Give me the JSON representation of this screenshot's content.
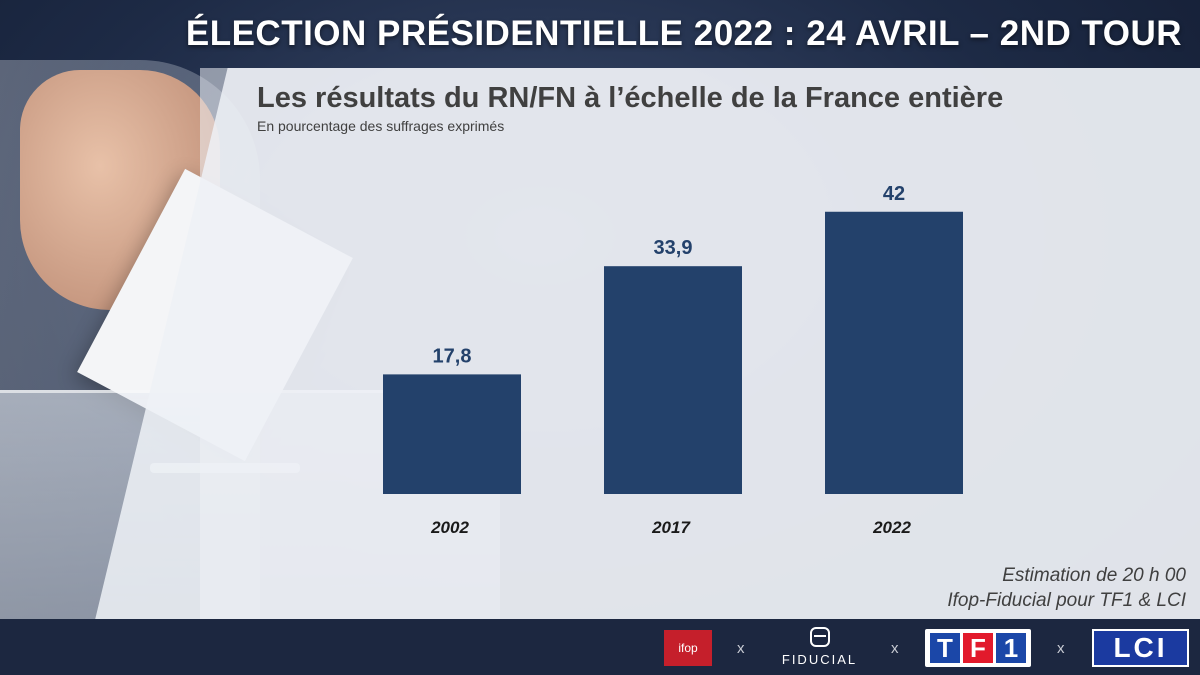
{
  "header": {
    "title": "ÉLECTION PRÉSIDENTIELLE 2022 : 24 AVRIL – 2ND TOUR"
  },
  "chart": {
    "subtitle": "Les résultats du RN/FN à l’échelle de la France entière",
    "unit_note": "En pourcentage des suffrages exprimés"
  },
  "chart_data": {
    "type": "bar",
    "title": "Les résultats du RN/FN à l’échelle de la France entière",
    "subtitle": "En pourcentage des suffrages exprimés",
    "categories": [
      "2002",
      "2017",
      "2022"
    ],
    "values": [
      17.8,
      33.9,
      42
    ],
    "value_labels": [
      "17,8",
      "33,9",
      "42"
    ],
    "ylim": [
      0,
      50
    ],
    "grid": false,
    "bar_color": "#23416b",
    "label_color": "#23416b"
  },
  "source": {
    "line1": "Estimation de 20 h 00",
    "line2": "Ifop-Fiducial pour TF1 & LCI"
  },
  "footer": {
    "ifop": "ifop",
    "separator": "x",
    "fiducial": "FIDUCIAL",
    "tf1_letters": [
      "T",
      "F",
      "1"
    ],
    "lci": "LCI"
  }
}
